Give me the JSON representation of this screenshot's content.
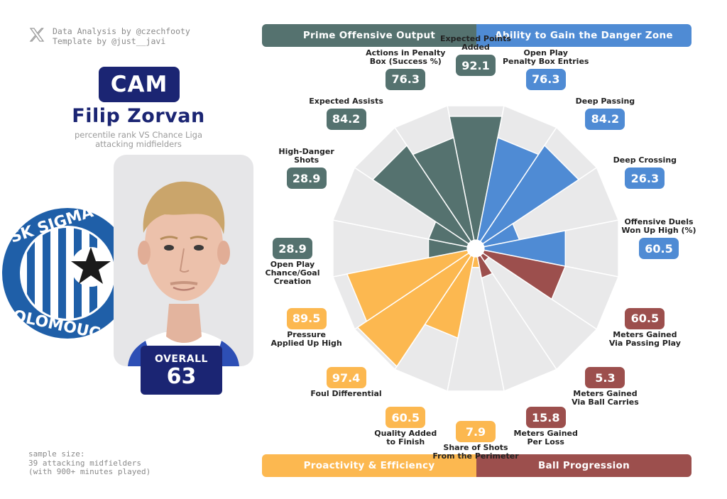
{
  "credits": {
    "line1": "Data Analysis by @czechfooty",
    "line2": "Template by @just__javi"
  },
  "player": {
    "position": "CAM",
    "name": "Filip Zorvan",
    "subtitle_line1": "percentile rank VS Chance Liga",
    "subtitle_line2": "attacking midfielders",
    "overall_label": "OVERALL",
    "overall_value": "63"
  },
  "club_logo_text": "SK SIGMA OLOMOUC",
  "sample": {
    "line1": "sample size:",
    "line2": "39 attacking midfielders",
    "line3": "(with 900+ minutes played)"
  },
  "categories": {
    "top_left": "Prime Offensive Output",
    "top_right": "Ability to Gain the Danger Zone",
    "bottom_left": "Proactivity & Efficiency",
    "bottom_right": "Ball Progression"
  },
  "colors": {
    "offensive": "#55726f",
    "danger_zone": "#4f8bd4",
    "proactivity": "#fcb850",
    "progression": "#9c4f4d",
    "navy": "#1b2573",
    "wedge_bg": "#e9e9ea"
  },
  "chart_data": {
    "type": "radial-bar",
    "scale": [
      0,
      100
    ],
    "metrics": [
      {
        "label": "Expected Points Added",
        "value": 92.1,
        "group": "offensive"
      },
      {
        "label": "Open Play Penalty Box Entries",
        "value": 76.3,
        "group": "danger_zone"
      },
      {
        "label": "Deep Passing",
        "value": 84.2,
        "group": "danger_zone"
      },
      {
        "label": "Deep Crossing",
        "value": 26.3,
        "group": "danger_zone"
      },
      {
        "label": "Offensive Duels Won Up High (%)",
        "value": 60.5,
        "group": "danger_zone"
      },
      {
        "label": "Meters Gained Via Passing Play",
        "value": 60.5,
        "group": "progression"
      },
      {
        "label": "Meters Gained Via Ball Carries",
        "value": 5.3,
        "group": "progression"
      },
      {
        "label": "Meters Gained Per Loss",
        "value": 15.8,
        "group": "progression"
      },
      {
        "label": "Share of Shots From the Perimeter",
        "value": 7.9,
        "group": "proactivity"
      },
      {
        "label": "Quality Added to Finish",
        "value": 60.5,
        "group": "proactivity"
      },
      {
        "label": "Foul Differential",
        "value": 97.4,
        "group": "proactivity"
      },
      {
        "label": "Pressure Applied Up High",
        "value": 89.5,
        "group": "proactivity"
      },
      {
        "label": "Open Play Chance/Goal Creation",
        "value": 28.9,
        "group": "offensive"
      },
      {
        "label": "High-Danger Shots",
        "value": 28.9,
        "group": "offensive"
      },
      {
        "label": "Expected Assists",
        "value": 84.2,
        "group": "offensive"
      },
      {
        "label": "Actions in Penalty Box (Success %)",
        "value": 76.3,
        "group": "offensive"
      }
    ]
  },
  "metric_lines": [
    [
      "Expected Points",
      "Added"
    ],
    [
      "Open Play",
      "Penalty Box Entries"
    ],
    [
      "Deep Passing"
    ],
    [
      "Deep Crossing"
    ],
    [
      "Offensive Duels",
      "Won Up High (%)"
    ],
    [
      "Meters Gained",
      "Via Passing Play"
    ],
    [
      "Meters Gained",
      "Via Ball Carries"
    ],
    [
      "Meters Gained",
      "Per Loss"
    ],
    [
      "Share of Shots",
      "From the Perimeter"
    ],
    [
      "Quality Added",
      "to Finish"
    ],
    [
      "Foul Differential"
    ],
    [
      "Pressure",
      "Applied Up High"
    ],
    [
      "Open Play",
      "Chance/Goal",
      "Creation"
    ],
    [
      "High-Danger",
      "Shots"
    ],
    [
      "Expected Assists"
    ],
    [
      "Actions in Penalty",
      "Box (Success %)"
    ]
  ]
}
